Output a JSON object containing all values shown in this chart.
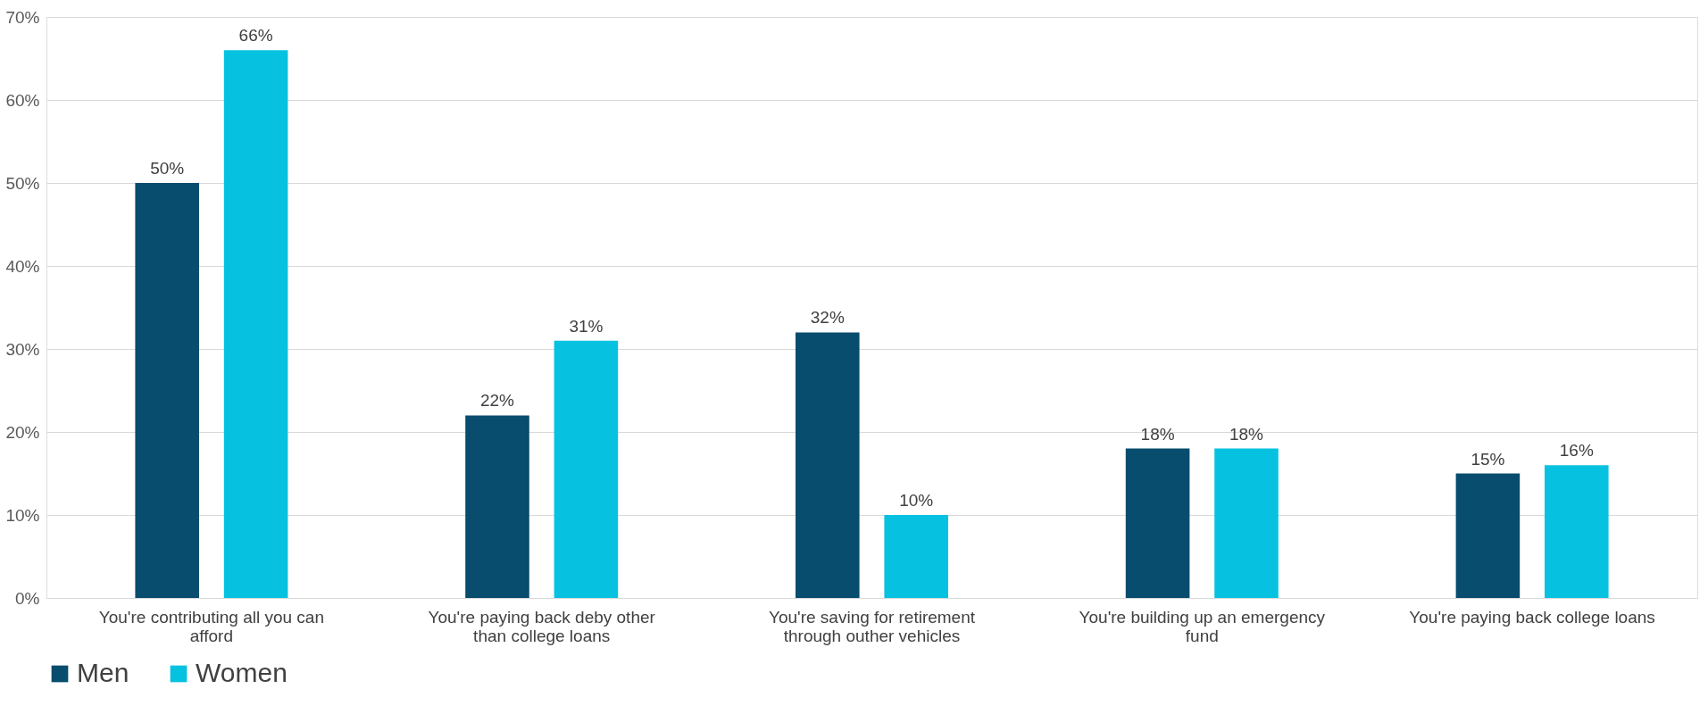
{
  "chart_data": {
    "type": "bar",
    "categories": [
      "You're contributing all you can afford",
      "You're paying back deby other than college loans",
      "You're saving for retirement through outher vehicles",
      "You're building up an emergency fund",
      "You're paying back college loans"
    ],
    "series": [
      {
        "name": "Men",
        "color": "#084c6e",
        "values": [
          50,
          22,
          32,
          18,
          15
        ],
        "value_labels": [
          "50%",
          "22%",
          "32%",
          "18%",
          "15%"
        ]
      },
      {
        "name": "Women",
        "color": "#06c2e0",
        "values": [
          66,
          31,
          10,
          18,
          16
        ],
        "value_labels": [
          "66%",
          "31%",
          "10%",
          "18%",
          "16%"
        ]
      }
    ],
    "ylim": [
      0,
      70
    ],
    "yticks": [
      {
        "value": 0,
        "label": "0%"
      },
      {
        "value": 10,
        "label": "10%"
      },
      {
        "value": 20,
        "label": "20%"
      },
      {
        "value": 30,
        "label": "30%"
      },
      {
        "value": 40,
        "label": "40%"
      },
      {
        "value": 50,
        "label": "50%"
      },
      {
        "value": 60,
        "label": "60%"
      },
      {
        "value": 70,
        "label": "70%"
      }
    ],
    "grid": "y",
    "legend": "bottom"
  }
}
